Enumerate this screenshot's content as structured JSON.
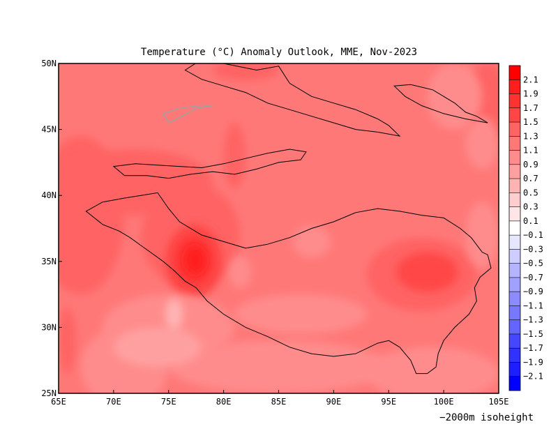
{
  "chart_data": {
    "type": "heatmap",
    "title": "Temperature (°C) Anomaly Outlook, MME, Nov-2023",
    "x_ticks": [
      "65E",
      "70E",
      "75E",
      "80E",
      "85E",
      "90E",
      "95E",
      "100E",
      "105E"
    ],
    "y_ticks": [
      "50N",
      "45N",
      "40N",
      "35N",
      "30N",
      "25N"
    ],
    "xlim": [
      65,
      105
    ],
    "ylim": [
      25,
      50
    ],
    "colorbar": {
      "labels": [
        "2.1",
        "1.9",
        "1.7",
        "1.5",
        "1.3",
        "1.1",
        "0.9",
        "0.7",
        "0.5",
        "0.3",
        "0.1",
        "−0.1",
        "−0.3",
        "−0.5",
        "−0.7",
        "−0.9",
        "−1.1",
        "−1.3",
        "−1.5",
        "−1.7",
        "−1.9",
        "−2.1"
      ],
      "colors": [
        "#ff0000",
        "#ff1e1e",
        "#ff3232",
        "#ff4646",
        "#ff6464",
        "#ff7878",
        "#ff8c8c",
        "#ffa0a0",
        "#ffb4b4",
        "#ffcdcd",
        "#ffe6e6",
        "#ffffff",
        "#e6e6ff",
        "#cdcdff",
        "#b4b4ff",
        "#a0a0ff",
        "#8c8cff",
        "#7878ff",
        "#6464ff",
        "#4646ff",
        "#3232ff",
        "#1e1eff",
        "#0000ff"
      ]
    },
    "background_anomaly": 1.2,
    "regions": [
      {
        "lon": 67,
        "lat": 38.5,
        "rx": 4,
        "ry": 6,
        "anomaly": 1.4
      },
      {
        "lon": 72,
        "lat": 41,
        "rx": 7,
        "ry": 2.5,
        "anomaly": 1.4
      },
      {
        "lon": 77,
        "lat": 37,
        "rx": 4.5,
        "ry": 4,
        "anomaly": 1.4
      },
      {
        "lon": 81,
        "lat": 43,
        "rx": 1,
        "ry": 2.5,
        "anomaly": 1.4
      },
      {
        "lon": 82,
        "lat": 49.5,
        "rx": 3,
        "ry": 0.8,
        "anomaly": 1.4
      },
      {
        "lon": 104,
        "lat": 47,
        "rx": 2,
        "ry": 3,
        "anomaly": 1.4
      },
      {
        "lon": 65.8,
        "lat": 29,
        "rx": 0.8,
        "ry": 2.5,
        "anomaly": 1.4
      },
      {
        "lon": 77.3,
        "lat": 35,
        "rx": 2.6,
        "ry": 2.8,
        "anomaly": 1.6
      },
      {
        "lon": 77.3,
        "lat": 35.1,
        "rx": 1.7,
        "ry": 1.8,
        "anomaly": 1.8
      },
      {
        "lon": 77.4,
        "lat": 35.1,
        "rx": 0.9,
        "ry": 1.0,
        "anomaly": 2.0
      },
      {
        "lon": 98,
        "lat": 34,
        "rx": 5,
        "ry": 2.8,
        "anomaly": 1.4
      },
      {
        "lon": 98.5,
        "lat": 34.2,
        "rx": 2.8,
        "ry": 1.5,
        "anomaly": 1.6
      },
      {
        "lon": 75,
        "lat": 30,
        "rx": 6,
        "ry": 2.5,
        "anomaly": 1.0
      },
      {
        "lon": 87,
        "lat": 31,
        "rx": 6,
        "ry": 1.5,
        "anomaly": 1.0
      },
      {
        "lon": 71,
        "lat": 27,
        "rx": 4,
        "ry": 3,
        "anomaly": 1.0
      },
      {
        "lon": 85,
        "lat": 27,
        "rx": 10,
        "ry": 2,
        "anomaly": 1.0
      },
      {
        "lon": 99,
        "lat": 26.5,
        "rx": 6,
        "ry": 2,
        "anomaly": 1.0
      },
      {
        "lon": 88,
        "lat": 36.5,
        "rx": 1.7,
        "ry": 1.2,
        "anomaly": 1.0
      },
      {
        "lon": 81.5,
        "lat": 34.2,
        "rx": 1,
        "ry": 1.2,
        "anomaly": 1.0
      },
      {
        "lon": 101,
        "lat": 47.5,
        "rx": 2.5,
        "ry": 2.5,
        "anomaly": 1.0
      },
      {
        "lon": 103.5,
        "lat": 44,
        "rx": 1.5,
        "ry": 2,
        "anomaly": 1.0
      },
      {
        "lon": 103.5,
        "lat": 37,
        "rx": 1.5,
        "ry": 2.5,
        "anomaly": 1.0
      },
      {
        "lon": 74,
        "lat": 28.5,
        "rx": 4,
        "ry": 1.5,
        "anomaly": 0.8
      },
      {
        "lon": 75.5,
        "lat": 31,
        "rx": 0.8,
        "ry": 1.2,
        "anomaly": 0.6
      }
    ],
    "isoheight_label": "−2000m isoheight",
    "isoheight_outlines": [
      [
        [
          76.5,
          49.5
        ],
        [
          78,
          50.3
        ],
        [
          80,
          50
        ],
        [
          83,
          49.5
        ],
        [
          85,
          49.8
        ],
        [
          86,
          48.5
        ],
        [
          88,
          47.5
        ],
        [
          90,
          47
        ],
        [
          92,
          46.5
        ],
        [
          94,
          45.8
        ],
        [
          95,
          45.3
        ],
        [
          96,
          44.5
        ],
        [
          94,
          44.8
        ],
        [
          92,
          45
        ],
        [
          90,
          45.5
        ],
        [
          88,
          46
        ],
        [
          86,
          46.5
        ],
        [
          84,
          47
        ],
        [
          82,
          47.8
        ],
        [
          80,
          48.3
        ],
        [
          78,
          48.8
        ],
        [
          76.5,
          49.5
        ]
      ],
      [
        [
          95.5,
          48.3
        ],
        [
          97,
          48.4
        ],
        [
          99,
          48
        ],
        [
          101,
          47
        ],
        [
          102,
          46.3
        ],
        [
          103,
          46
        ],
        [
          104,
          45.5
        ],
        [
          102,
          45.8
        ],
        [
          100,
          46.2
        ],
        [
          98,
          46.8
        ],
        [
          96.5,
          47.5
        ],
        [
          95.5,
          48.3
        ]
      ],
      [
        [
          70,
          42.2
        ],
        [
          72,
          42.4
        ],
        [
          74,
          42.3
        ],
        [
          76,
          42.2
        ],
        [
          78,
          42.1
        ],
        [
          80,
          42.4
        ],
        [
          82,
          42.8
        ],
        [
          84,
          43.2
        ],
        [
          86,
          43.5
        ],
        [
          87.5,
          43.3
        ],
        [
          87,
          42.7
        ],
        [
          85,
          42.5
        ],
        [
          83,
          42
        ],
        [
          81,
          41.6
        ],
        [
          79,
          41.8
        ],
        [
          77,
          41.6
        ],
        [
          75,
          41.3
        ],
        [
          73,
          41.5
        ],
        [
          71,
          41.5
        ],
        [
          70,
          42.2
        ]
      ],
      [
        [
          67.5,
          38.8
        ],
        [
          69,
          39.5
        ],
        [
          71,
          39.8
        ],
        [
          72.5,
          40
        ],
        [
          74,
          40.2
        ],
        [
          75,
          39
        ],
        [
          76,
          38
        ],
        [
          78,
          37
        ],
        [
          80,
          36.5
        ],
        [
          82,
          36
        ],
        [
          84,
          36.3
        ],
        [
          86,
          36.8
        ],
        [
          88,
          37.5
        ],
        [
          90,
          38
        ],
        [
          92,
          38.7
        ],
        [
          94,
          39
        ],
        [
          96,
          38.8
        ],
        [
          98,
          38.5
        ],
        [
          100,
          38.3
        ],
        [
          101.5,
          37.5
        ],
        [
          102.5,
          36.8
        ],
        [
          103.5,
          35.7
        ],
        [
          104,
          35.5
        ],
        [
          104.3,
          34.5
        ],
        [
          103.3,
          33.8
        ],
        [
          102.8,
          33
        ],
        [
          103,
          32
        ],
        [
          102.3,
          31
        ],
        [
          101,
          30
        ],
        [
          100,
          29
        ],
        [
          99.5,
          28
        ],
        [
          99.3,
          27
        ],
        [
          98.5,
          26.5
        ],
        [
          97.5,
          26.5
        ],
        [
          97,
          27.5
        ],
        [
          96,
          28.5
        ],
        [
          95,
          29
        ],
        [
          94,
          28.8
        ],
        [
          92,
          28
        ],
        [
          90,
          27.8
        ],
        [
          88,
          28
        ],
        [
          86,
          28.5
        ],
        [
          84,
          29.3
        ],
        [
          82,
          30
        ],
        [
          80,
          31
        ],
        [
          78.5,
          32
        ],
        [
          77.5,
          33
        ],
        [
          76.5,
          33.5
        ],
        [
          75.5,
          34.3
        ],
        [
          74.5,
          35
        ],
        [
          73.5,
          35.6
        ],
        [
          72.5,
          36.2
        ],
        [
          71.5,
          36.8
        ],
        [
          70.5,
          37.3
        ],
        [
          69,
          37.8
        ],
        [
          67.5,
          38.8
        ]
      ]
    ],
    "grey_outline": [
      [
        74.5,
        46.2
      ],
      [
        76,
        46.6
      ],
      [
        77.8,
        46.8
      ],
      [
        79,
        46.8
      ],
      [
        77.5,
        46.6
      ],
      [
        76.2,
        46
      ],
      [
        75,
        45.5
      ],
      [
        74.5,
        46.2
      ]
    ]
  }
}
